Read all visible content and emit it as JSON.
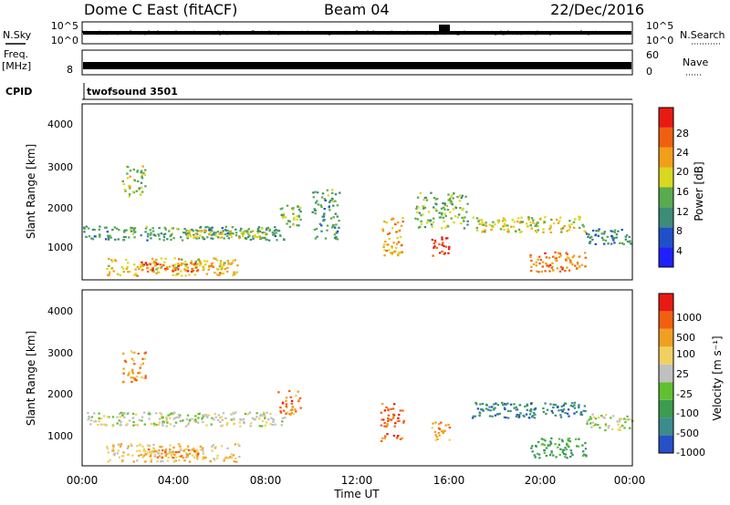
{
  "header": {
    "station": "Dome C East (fitACF)",
    "beam": "Beam 04",
    "date": "22/Dec/2016"
  },
  "param_panels": {
    "nsky_label": "N.Sky",
    "nsky_ticks": [
      "10^5",
      "10^0"
    ],
    "nsearch_label": "N.Search",
    "nsearch_ticks": [
      "10^5",
      "10^0"
    ],
    "freq_label": "Freq.",
    "freq_unit": "[MHz]",
    "freq_ticks": [
      "8"
    ],
    "nave_label": "Nave",
    "nave_ticks": [
      "60",
      "0"
    ],
    "cpid_label": "CPID",
    "cpid_value": "twofsound 3501"
  },
  "chart_data": [
    {
      "type": "heatmap",
      "name": "Power",
      "ylabel": "Slant Range [km]",
      "yticks": [
        "4000",
        "3000",
        "2000",
        "1000"
      ],
      "ylim": [
        200,
        4600
      ],
      "xlim_hours": [
        0,
        24
      ],
      "colorbar_label": "Power [dB]",
      "colorbar_ticks": [
        "28",
        "24",
        "20",
        "16",
        "12",
        "8",
        "4"
      ],
      "colorbar_colors": [
        "#2020ff",
        "#2050c8",
        "#3c8c78",
        "#5aaa50",
        "#d8d820",
        "#f0a018",
        "#f06010",
        "#e81a14"
      ],
      "regions": [
        {
          "t0": 0.0,
          "t1": 8.8,
          "r0": 1200,
          "r1": 1550,
          "level": 2.5
        },
        {
          "t0": 4.5,
          "t1": 8.0,
          "r0": 1250,
          "r1": 1450,
          "level": 4
        },
        {
          "t0": 1.0,
          "t1": 6.8,
          "r0": 300,
          "r1": 750,
          "level": 4.5
        },
        {
          "t0": 2.5,
          "t1": 5.0,
          "r0": 400,
          "r1": 650,
          "level": 6
        },
        {
          "t0": 1.7,
          "t1": 2.7,
          "r0": 2300,
          "r1": 3100,
          "level": 3.5
        },
        {
          "t0": 8.5,
          "t1": 9.5,
          "r0": 1500,
          "r1": 2100,
          "level": 3
        },
        {
          "t0": 10.0,
          "t1": 11.2,
          "r0": 1200,
          "r1": 2500,
          "level": 2.5
        },
        {
          "t0": 13.0,
          "t1": 14.0,
          "r0": 800,
          "r1": 1800,
          "level": 5
        },
        {
          "t0": 15.2,
          "t1": 16.0,
          "r0": 800,
          "r1": 1300,
          "level": 6.5
        },
        {
          "t0": 14.5,
          "t1": 16.8,
          "r0": 1500,
          "r1": 2400,
          "level": 3
        },
        {
          "t0": 17.0,
          "t1": 22.0,
          "r0": 1400,
          "r1": 1800,
          "level": 4
        },
        {
          "t0": 19.5,
          "t1": 22.0,
          "r0": 400,
          "r1": 900,
          "level": 5.5
        },
        {
          "t0": 22.0,
          "t1": 24.0,
          "r0": 1100,
          "r1": 1500,
          "level": 2
        }
      ]
    },
    {
      "type": "heatmap",
      "name": "Velocity",
      "ylabel": "Slant Range [km]",
      "yticks": [
        "4000",
        "3000",
        "2000",
        "1000"
      ],
      "ylim": [
        200,
        4600
      ],
      "xlim_hours": [
        0,
        24
      ],
      "xticks": [
        "00:00",
        "04:00",
        "08:00",
        "12:00",
        "16:00",
        "20:00",
        "00:00"
      ],
      "xlabel": "Time UT",
      "colorbar_label": "Velocity [m s⁻¹]",
      "colorbar_ticks": [
        "1000",
        "500",
        "100",
        "25",
        "-25",
        "-100",
        "-500",
        "-1000"
      ],
      "colorbar_colors": [
        "#2850c8",
        "#3c8c8c",
        "#3c9c50",
        "#60c030",
        "#c0c0c0",
        "#f0d060",
        "#f0a020",
        "#f06010",
        "#e81a14"
      ],
      "regions": [
        {
          "t0": 0.0,
          "t1": 8.8,
          "r0": 1200,
          "r1": 1550,
          "level": 4
        },
        {
          "t0": 1.0,
          "t1": 6.8,
          "r0": 300,
          "r1": 750,
          "level": 5
        },
        {
          "t0": 2.5,
          "t1": 5.0,
          "r0": 400,
          "r1": 650,
          "level": 6
        },
        {
          "t0": 1.7,
          "t1": 2.7,
          "r0": 2300,
          "r1": 3100,
          "level": 6
        },
        {
          "t0": 8.5,
          "t1": 9.5,
          "r0": 1500,
          "r1": 2100,
          "level": 6.5
        },
        {
          "t0": 13.0,
          "t1": 14.0,
          "r0": 800,
          "r1": 1800,
          "level": 7
        },
        {
          "t0": 15.2,
          "t1": 16.0,
          "r0": 800,
          "r1": 1300,
          "level": 6
        },
        {
          "t0": 17.0,
          "t1": 22.0,
          "r0": 1400,
          "r1": 1800,
          "level": 1
        },
        {
          "t0": 19.5,
          "t1": 22.0,
          "r0": 400,
          "r1": 900,
          "level": 2
        },
        {
          "t0": 22.0,
          "t1": 24.0,
          "r0": 1100,
          "r1": 1500,
          "level": 4
        }
      ]
    }
  ]
}
